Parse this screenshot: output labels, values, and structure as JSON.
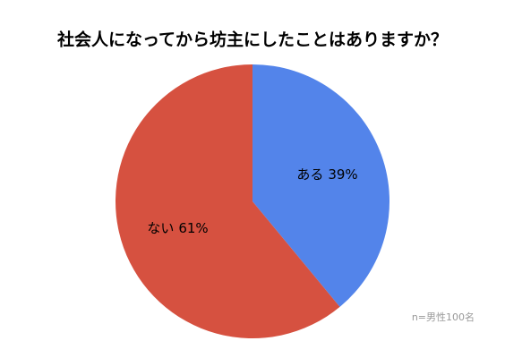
{
  "chart_data": {
    "type": "pie",
    "title": "社会人になってから坊主にしたことはありますか？",
    "categories": [
      "ある",
      "ない"
    ],
    "values": [
      39,
      61
    ],
    "value_labels": [
      "39%",
      "61%"
    ],
    "colors": [
      "#5384ea",
      "#d65140"
    ],
    "annotation": "n=男性100名"
  }
}
